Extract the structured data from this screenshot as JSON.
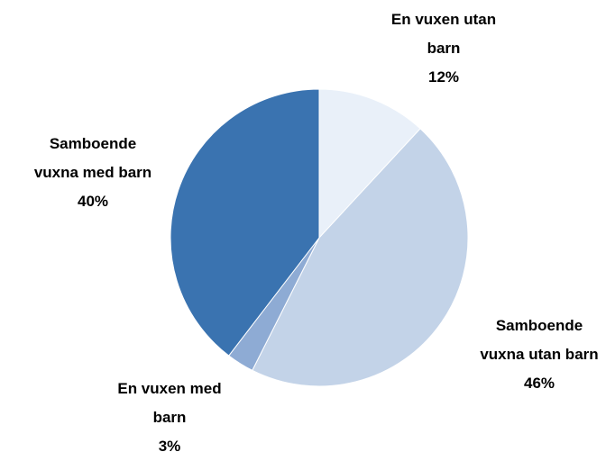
{
  "chart_data": {
    "type": "pie",
    "categories": [
      "En vuxen utan barn",
      "Samboende vuxna utan barn",
      "En vuxen med barn",
      "Samboende vuxna med barn"
    ],
    "values": [
      12,
      46,
      3,
      40
    ],
    "value_labels": [
      "12%",
      "46%",
      "3%",
      "40%"
    ],
    "colors": [
      "#e9f0f9",
      "#c3d3e8",
      "#8eabd4",
      "#3a73b0"
    ]
  }
}
